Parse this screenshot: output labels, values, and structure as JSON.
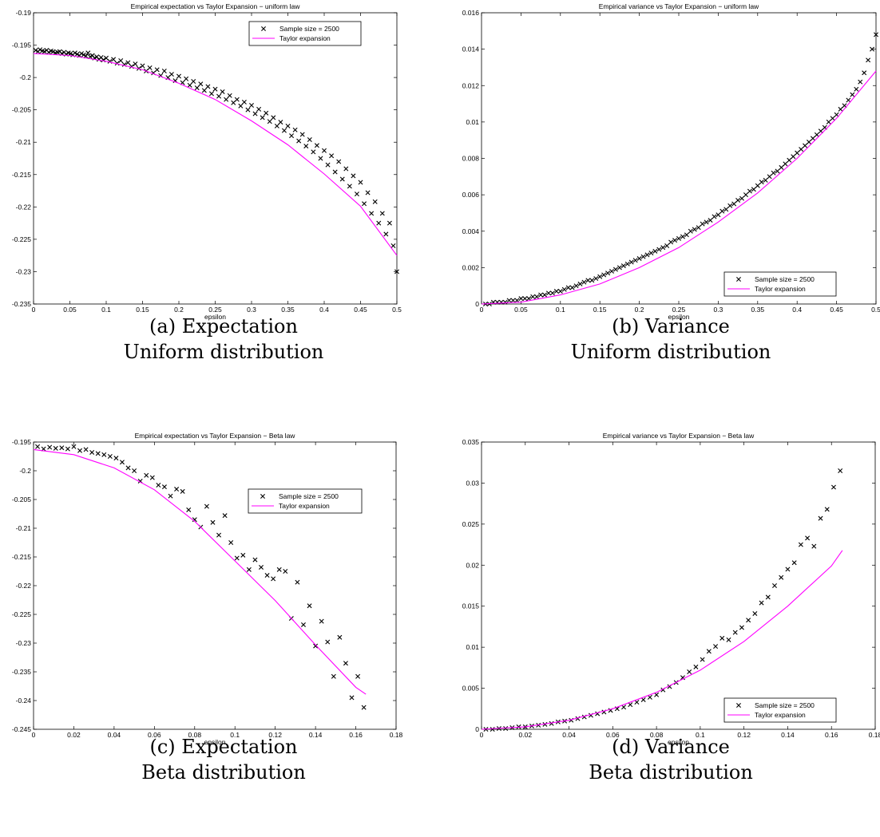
{
  "chart_data": [
    {
      "type": "scatter",
      "title": "Empirical expectation vs Taylor Expansion − uniform law",
      "xlabel": "epsilon",
      "ylabel": "",
      "xlim": [
        0,
        0.5
      ],
      "ylim": [
        -0.235,
        -0.19
      ],
      "xticks": [
        "0",
        "0.05",
        "0.1",
        "0.15",
        "0.2",
        "0.25",
        "0.3",
        "0.35",
        "0.4",
        "0.45",
        "0.5"
      ],
      "yticks": [
        "-0.19",
        "-0.195",
        "-0.2",
        "-0.205",
        "-0.21",
        "-0.215",
        "-0.22",
        "-0.225",
        "-0.23",
        "-0.235"
      ],
      "legend_position": "top-right",
      "caption": [
        "(a) Expectation",
        "Uniform distribution"
      ],
      "series": [
        {
          "name": "Sample size = 2500",
          "style": "markers",
          "marker": "x",
          "x": [
            0.003,
            0.006,
            0.009,
            0.012,
            0.015,
            0.018,
            0.021,
            0.024,
            0.027,
            0.03,
            0.033,
            0.036,
            0.039,
            0.042,
            0.045,
            0.048,
            0.051,
            0.054,
            0.057,
            0.06,
            0.063,
            0.066,
            0.069,
            0.072,
            0.075,
            0.078,
            0.081,
            0.084,
            0.087,
            0.09,
            0.093,
            0.096,
            0.1,
            0.105,
            0.11,
            0.115,
            0.12,
            0.125,
            0.13,
            0.135,
            0.14,
            0.145,
            0.15,
            0.155,
            0.16,
            0.165,
            0.17,
            0.175,
            0.18,
            0.185,
            0.19,
            0.195,
            0.2,
            0.205,
            0.21,
            0.215,
            0.22,
            0.225,
            0.23,
            0.235,
            0.24,
            0.245,
            0.25,
            0.255,
            0.26,
            0.265,
            0.27,
            0.275,
            0.28,
            0.285,
            0.29,
            0.295,
            0.3,
            0.305,
            0.31,
            0.315,
            0.32,
            0.325,
            0.33,
            0.335,
            0.34,
            0.345,
            0.35,
            0.355,
            0.36,
            0.365,
            0.37,
            0.375,
            0.38,
            0.385,
            0.39,
            0.395,
            0.4,
            0.405,
            0.41,
            0.415,
            0.42,
            0.425,
            0.43,
            0.435,
            0.44,
            0.445,
            0.45,
            0.455,
            0.46,
            0.465,
            0.47,
            0.475,
            0.48,
            0.485,
            0.49,
            0.495,
            0.5
          ],
          "y": [
            -0.1958,
            -0.196,
            -0.1957,
            -0.1959,
            -0.196,
            -0.1958,
            -0.1961,
            -0.1959,
            -0.196,
            -0.1962,
            -0.1961,
            -0.196,
            -0.1963,
            -0.1961,
            -0.1964,
            -0.1962,
            -0.1963,
            -0.1965,
            -0.1962,
            -0.1964,
            -0.1966,
            -0.1963,
            -0.1965,
            -0.1967,
            -0.1962,
            -0.1968,
            -0.1966,
            -0.197,
            -0.1968,
            -0.1972,
            -0.1969,
            -0.1973,
            -0.197,
            -0.1975,
            -0.1972,
            -0.1978,
            -0.1974,
            -0.198,
            -0.1977,
            -0.1983,
            -0.1979,
            -0.1986,
            -0.1982,
            -0.199,
            -0.1985,
            -0.1993,
            -0.1988,
            -0.1997,
            -0.199,
            -0.2,
            -0.1995,
            -0.2005,
            -0.1998,
            -0.2008,
            -0.2002,
            -0.2012,
            -0.2006,
            -0.2016,
            -0.201,
            -0.202,
            -0.2014,
            -0.2025,
            -0.2018,
            -0.2029,
            -0.2022,
            -0.2034,
            -0.2028,
            -0.2039,
            -0.2034,
            -0.2044,
            -0.2038,
            -0.205,
            -0.2043,
            -0.2056,
            -0.2049,
            -0.2062,
            -0.2055,
            -0.2068,
            -0.2062,
            -0.2075,
            -0.2069,
            -0.2082,
            -0.2075,
            -0.209,
            -0.2081,
            -0.2098,
            -0.2088,
            -0.2106,
            -0.2096,
            -0.2115,
            -0.2105,
            -0.2125,
            -0.2113,
            -0.2135,
            -0.2121,
            -0.2146,
            -0.213,
            -0.2157,
            -0.2141,
            -0.2168,
            -0.2152,
            -0.218,
            -0.2162,
            -0.2195,
            -0.2178,
            -0.221,
            -0.2192,
            -0.2225,
            -0.221,
            -0.2242,
            -0.2225,
            -0.226,
            -0.23
          ]
        },
        {
          "name": "Taylor expansion",
          "style": "line",
          "color": "#ff00ff",
          "x": [
            0,
            0.05,
            0.1,
            0.15,
            0.2,
            0.25,
            0.3,
            0.35,
            0.4,
            0.45,
            0.5
          ],
          "y": [
            -0.1963,
            -0.1966,
            -0.1975,
            -0.1988,
            -0.2009,
            -0.2034,
            -0.2067,
            -0.2104,
            -0.2149,
            -0.2199,
            -0.2275
          ]
        }
      ]
    },
    {
      "type": "scatter",
      "title": "Empirical variance vs Taylor Expansion − uniform law",
      "xlabel": "epsilon",
      "ylabel": "",
      "xlim": [
        0,
        0.5
      ],
      "ylim": [
        0,
        0.016
      ],
      "xticks": [
        "0",
        "0.05",
        "0.1",
        "0.15",
        "0.2",
        "0.25",
        "0.3",
        "0.35",
        "0.4",
        "0.45",
        "0.5"
      ],
      "yticks": [
        "0",
        "0.002",
        "0.004",
        "0.006",
        "0.008",
        "0.01",
        "0.012",
        "0.014",
        "0.016"
      ],
      "legend_position": "bottom-right",
      "caption": [
        "(b) Variance",
        "Uniform distribution"
      ],
      "series": [
        {
          "name": "Sample size = 2500",
          "style": "markers",
          "marker": "x",
          "x": [
            0.005,
            0.01,
            0.015,
            0.02,
            0.025,
            0.03,
            0.035,
            0.04,
            0.045,
            0.05,
            0.055,
            0.06,
            0.065,
            0.07,
            0.075,
            0.08,
            0.085,
            0.09,
            0.095,
            0.1,
            0.105,
            0.11,
            0.115,
            0.12,
            0.125,
            0.13,
            0.135,
            0.14,
            0.145,
            0.15,
            0.155,
            0.16,
            0.165,
            0.17,
            0.175,
            0.18,
            0.185,
            0.19,
            0.195,
            0.2,
            0.205,
            0.21,
            0.215,
            0.22,
            0.225,
            0.23,
            0.235,
            0.24,
            0.245,
            0.25,
            0.255,
            0.26,
            0.265,
            0.27,
            0.275,
            0.28,
            0.285,
            0.29,
            0.295,
            0.3,
            0.305,
            0.31,
            0.315,
            0.32,
            0.325,
            0.33,
            0.335,
            0.34,
            0.345,
            0.35,
            0.355,
            0.36,
            0.365,
            0.37,
            0.375,
            0.38,
            0.385,
            0.39,
            0.395,
            0.4,
            0.405,
            0.41,
            0.415,
            0.42,
            0.425,
            0.43,
            0.435,
            0.44,
            0.445,
            0.45,
            0.455,
            0.46,
            0.465,
            0.47,
            0.475,
            0.48,
            0.485,
            0.49,
            0.495,
            0.5
          ],
          "y": [
            0.0,
            0.0,
            0.0001,
            0.0001,
            0.0001,
            0.0001,
            0.0002,
            0.0002,
            0.0002,
            0.0003,
            0.0003,
            0.0003,
            0.0004,
            0.0004,
            0.0005,
            0.0005,
            0.0006,
            0.0006,
            0.0007,
            0.0007,
            0.0008,
            0.0009,
            0.0009,
            0.001,
            0.0011,
            0.0012,
            0.0013,
            0.0013,
            0.0014,
            0.0015,
            0.0016,
            0.0017,
            0.0018,
            0.0019,
            0.002,
            0.0021,
            0.0022,
            0.0023,
            0.0024,
            0.0025,
            0.0026,
            0.0027,
            0.0028,
            0.0029,
            0.003,
            0.0031,
            0.0032,
            0.0034,
            0.0035,
            0.0036,
            0.0037,
            0.0038,
            0.004,
            0.0041,
            0.0042,
            0.0044,
            0.0045,
            0.0046,
            0.0048,
            0.0049,
            0.0051,
            0.0052,
            0.0054,
            0.0055,
            0.0057,
            0.0058,
            0.006,
            0.0062,
            0.0063,
            0.0065,
            0.0067,
            0.0068,
            0.007,
            0.0072,
            0.0073,
            0.0075,
            0.0077,
            0.0079,
            0.0081,
            0.0083,
            0.0085,
            0.0087,
            0.0089,
            0.0091,
            0.0093,
            0.0095,
            0.0097,
            0.01,
            0.0102,
            0.0104,
            0.0107,
            0.0109,
            0.0112,
            0.0115,
            0.0118,
            0.0122,
            0.0127,
            0.0134,
            0.014,
            0.0148
          ]
        },
        {
          "name": "Taylor expansion",
          "style": "line",
          "color": "#ff00ff",
          "x": [
            0,
            0.05,
            0.1,
            0.15,
            0.2,
            0.25,
            0.3,
            0.35,
            0.4,
            0.45,
            0.5
          ],
          "y": [
            0.0,
            0.0001,
            0.0005,
            0.0011,
            0.002,
            0.0031,
            0.0045,
            0.0061,
            0.008,
            0.0102,
            0.0128
          ]
        }
      ]
    },
    {
      "type": "scatter",
      "title": "Empirical expectation vs Taylor Expansion − Beta law",
      "xlabel": "epsilon",
      "ylabel": "",
      "xlim": [
        0,
        0.18
      ],
      "ylim": [
        -0.245,
        -0.195
      ],
      "xticks": [
        "0",
        "0.02",
        "0.04",
        "0.06",
        "0.08",
        "0.1",
        "0.12",
        "0.14",
        "0.16",
        "0.18"
      ],
      "yticks": [
        "-0.195",
        "-0.2",
        "-0.205",
        "-0.21",
        "-0.215",
        "-0.22",
        "-0.225",
        "-0.23",
        "-0.235",
        "-0.24",
        "-0.245"
      ],
      "legend_position": "upper-right",
      "caption": [
        "(c) Expectation",
        "Beta distribution"
      ],
      "series": [
        {
          "name": "Sample size = 2500",
          "style": "markers",
          "marker": "x",
          "x": [
            0.002,
            0.005,
            0.008,
            0.011,
            0.014,
            0.017,
            0.02,
            0.023,
            0.026,
            0.029,
            0.032,
            0.035,
            0.038,
            0.041,
            0.044,
            0.047,
            0.05,
            0.053,
            0.056,
            0.059,
            0.062,
            0.065,
            0.068,
            0.071,
            0.074,
            0.077,
            0.08,
            0.083,
            0.086,
            0.089,
            0.092,
            0.095,
            0.098,
            0.101,
            0.104,
            0.107,
            0.11,
            0.113,
            0.116,
            0.119,
            0.122,
            0.125,
            0.128,
            0.131,
            0.134,
            0.137,
            0.14,
            0.143,
            0.146,
            0.149,
            0.152,
            0.155,
            0.158,
            0.161,
            0.164
          ],
          "y": [
            -0.1958,
            -0.1962,
            -0.1959,
            -0.1961,
            -0.196,
            -0.1962,
            -0.1958,
            -0.1965,
            -0.1963,
            -0.1968,
            -0.197,
            -0.1972,
            -0.1975,
            -0.1978,
            -0.1985,
            -0.1995,
            -0.2,
            -0.2018,
            -0.2008,
            -0.2012,
            -0.2025,
            -0.2028,
            -0.2044,
            -0.2032,
            -0.2036,
            -0.2068,
            -0.2085,
            -0.2098,
            -0.2062,
            -0.209,
            -0.2112,
            -0.2078,
            -0.2125,
            -0.2152,
            -0.2147,
            -0.2172,
            -0.2155,
            -0.2168,
            -0.2182,
            -0.2188,
            -0.2172,
            -0.2175,
            -0.2257,
            -0.2194,
            -0.2268,
            -0.2235,
            -0.2305,
            -0.2262,
            -0.2298,
            -0.2358,
            -0.229,
            -0.2335,
            -0.2395,
            -0.2358,
            -0.2412
          ]
        },
        {
          "name": "Taylor expansion",
          "style": "line",
          "color": "#ff00ff",
          "x": [
            0,
            0.02,
            0.04,
            0.06,
            0.08,
            0.1,
            0.12,
            0.14,
            0.16,
            0.165
          ],
          "y": [
            -0.1963,
            -0.1972,
            -0.1995,
            -0.2033,
            -0.2088,
            -0.2157,
            -0.2226,
            -0.2303,
            -0.2377,
            -0.2389
          ]
        }
      ]
    },
    {
      "type": "scatter",
      "title": "Empirical variance vs Taylor Expansion − Beta law",
      "xlabel": "epsilon",
      "ylabel": "",
      "xlim": [
        0,
        0.18
      ],
      "ylim": [
        0,
        0.035
      ],
      "xticks": [
        "0",
        "0.02",
        "0.04",
        "0.06",
        "0.08",
        "0.1",
        "0.12",
        "0.14",
        "0.16",
        "0.18"
      ],
      "yticks": [
        "0",
        "0.005",
        "0.01",
        "0.015",
        "0.02",
        "0.025",
        "0.03",
        "0.035"
      ],
      "legend_position": "bottom-right",
      "caption": [
        "(d) Variance",
        "Beta distribution"
      ],
      "series": [
        {
          "name": "Sample size = 2500",
          "style": "markers",
          "marker": "x",
          "x": [
            0.002,
            0.005,
            0.008,
            0.011,
            0.014,
            0.017,
            0.02,
            0.023,
            0.026,
            0.029,
            0.032,
            0.035,
            0.038,
            0.041,
            0.044,
            0.047,
            0.05,
            0.053,
            0.056,
            0.059,
            0.062,
            0.065,
            0.068,
            0.071,
            0.074,
            0.077,
            0.08,
            0.083,
            0.086,
            0.089,
            0.092,
            0.095,
            0.098,
            0.101,
            0.104,
            0.107,
            0.11,
            0.113,
            0.116,
            0.119,
            0.122,
            0.125,
            0.128,
            0.131,
            0.134,
            0.137,
            0.14,
            0.143,
            0.146,
            0.149,
            0.152,
            0.155,
            0.158,
            0.161,
            0.164
          ],
          "y": [
            0.0,
            0.0,
            0.0001,
            0.0001,
            0.0002,
            0.0003,
            0.0003,
            0.0004,
            0.0005,
            0.0006,
            0.0007,
            0.0009,
            0.001,
            0.0011,
            0.0013,
            0.0015,
            0.0017,
            0.0019,
            0.0021,
            0.0023,
            0.0025,
            0.0027,
            0.003,
            0.0033,
            0.0036,
            0.0039,
            0.0042,
            0.0048,
            0.0052,
            0.0057,
            0.0063,
            0.007,
            0.0076,
            0.0085,
            0.0095,
            0.0101,
            0.0111,
            0.0109,
            0.0118,
            0.0124,
            0.0133,
            0.0141,
            0.0154,
            0.0161,
            0.0175,
            0.0185,
            0.0195,
            0.0203,
            0.0225,
            0.0233,
            0.0223,
            0.0257,
            0.0268,
            0.0295,
            0.0315
          ]
        },
        {
          "name": "Taylor expansion",
          "style": "line",
          "color": "#ff00ff",
          "x": [
            0,
            0.02,
            0.04,
            0.06,
            0.08,
            0.1,
            0.12,
            0.14,
            0.16,
            0.165
          ],
          "y": [
            0.0,
            0.0003,
            0.0011,
            0.0025,
            0.0045,
            0.0072,
            0.0107,
            0.015,
            0.0199,
            0.0218
          ]
        }
      ]
    }
  ]
}
